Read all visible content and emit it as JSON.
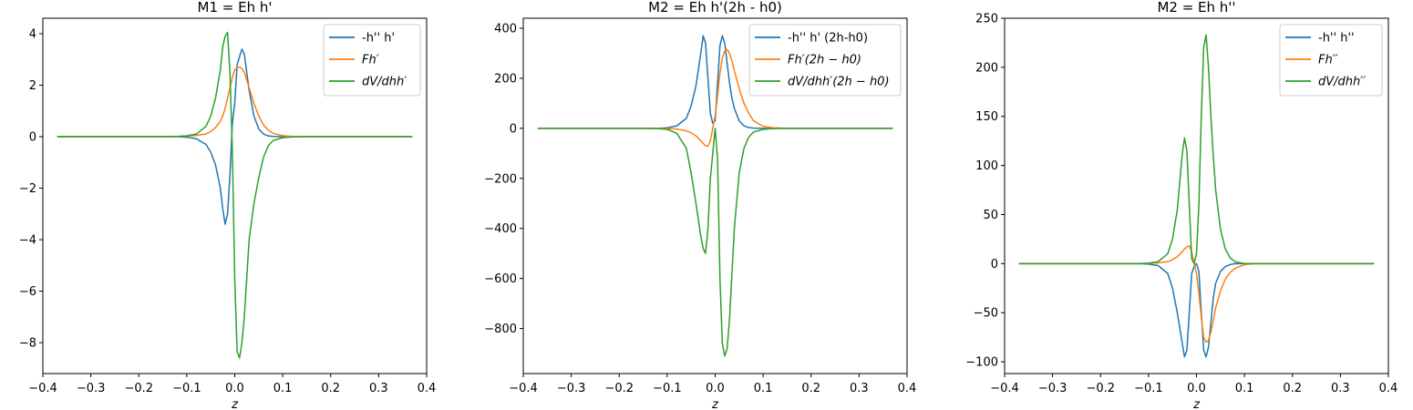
{
  "figure": {
    "background": "#ffffff",
    "colors": {
      "blue": "#1f77b4",
      "orange": "#ff7f0e",
      "green": "#2ca02c"
    }
  },
  "chart_data": [
    {
      "type": "line",
      "title": "M1 = Eh h'",
      "xlabel": "z",
      "ylabel": "",
      "xlim": [
        -0.4,
        0.4
      ],
      "ylim": [
        -9.2,
        4.6
      ],
      "xticks": [
        -0.4,
        -0.3,
        -0.2,
        -0.1,
        0.0,
        0.1,
        0.2,
        0.3,
        0.4
      ],
      "xtick_labels": [
        "−0.4",
        "−0.3",
        "−0.2",
        "−0.1",
        "0.0",
        "0.1",
        "0.2",
        "0.3",
        "0.4"
      ],
      "yticks": [
        -8,
        -6,
        -4,
        -2,
        0,
        2,
        4
      ],
      "ytick_labels": [
        "−8",
        "−6",
        "−4",
        "−2",
        "0",
        "2",
        "4"
      ],
      "legend_position": "top-right",
      "x": [
        -0.37,
        -0.2,
        -0.15,
        -0.12,
        -0.1,
        -0.08,
        -0.06,
        -0.05,
        -0.04,
        -0.03,
        -0.025,
        -0.02,
        -0.015,
        -0.01,
        -0.005,
        0.0,
        0.005,
        0.01,
        0.015,
        0.02,
        0.025,
        0.03,
        0.04,
        0.05,
        0.06,
        0.07,
        0.08,
        0.1,
        0.12,
        0.15,
        0.2,
        0.37
      ],
      "series": [
        {
          "name": "-h'' h'",
          "color": "#1f77b4",
          "values": [
            0,
            0,
            0,
            0,
            -0.02,
            -0.08,
            -0.3,
            -0.6,
            -1.1,
            -2.0,
            -2.8,
            -3.4,
            -3.0,
            -1.5,
            0.5,
            1.3,
            2.8,
            3.1,
            3.4,
            3.2,
            2.5,
            1.8,
            0.8,
            0.3,
            0.1,
            0.03,
            0.01,
            0,
            0,
            0,
            0,
            0
          ]
        },
        {
          "name": "Fh′",
          "color": "#ff7f0e",
          "values": [
            0,
            0,
            0,
            0.01,
            0.02,
            0.05,
            0.1,
            0.2,
            0.35,
            0.6,
            0.8,
            1.1,
            1.5,
            1.9,
            2.3,
            2.6,
            2.68,
            2.7,
            2.65,
            2.5,
            2.2,
            1.9,
            1.3,
            0.8,
            0.45,
            0.25,
            0.13,
            0.04,
            0.01,
            0,
            0,
            0
          ]
        },
        {
          "name": "dV/dhh′",
          "color": "#2ca02c",
          "values": [
            0,
            0,
            0,
            0.01,
            0.03,
            0.1,
            0.4,
            0.8,
            1.5,
            2.6,
            3.5,
            3.9,
            4.05,
            2.5,
            -0.5,
            -5.5,
            -8.35,
            -8.6,
            -8.0,
            -7.0,
            -5.5,
            -4.0,
            -2.6,
            -1.6,
            -0.8,
            -0.35,
            -0.15,
            -0.04,
            -0.01,
            0,
            0,
            0
          ]
        }
      ]
    },
    {
      "type": "line",
      "title": "M2 = Eh h'(2h - h0)",
      "xlabel": "z",
      "ylabel": "",
      "xlim": [
        -0.4,
        0.4
      ],
      "ylim": [
        -980,
        440
      ],
      "xticks": [
        -0.4,
        -0.3,
        -0.2,
        -0.1,
        0.0,
        0.1,
        0.2,
        0.3,
        0.4
      ],
      "xtick_labels": [
        "−0.4",
        "−0.3",
        "−0.2",
        "−0.1",
        "0.0",
        "0.1",
        "0.2",
        "0.3",
        "0.4"
      ],
      "yticks": [
        -800,
        -600,
        -400,
        -200,
        0,
        200,
        400
      ],
      "ytick_labels": [
        "−800",
        "−600",
        "−400",
        "−200",
        "0",
        "200",
        "400"
      ],
      "legend_position": "top-right",
      "x": [
        -0.37,
        -0.2,
        -0.15,
        -0.12,
        -0.1,
        -0.08,
        -0.06,
        -0.05,
        -0.04,
        -0.03,
        -0.025,
        -0.02,
        -0.015,
        -0.01,
        -0.005,
        0.0,
        0.005,
        0.01,
        0.015,
        0.02,
        0.025,
        0.03,
        0.035,
        0.04,
        0.05,
        0.06,
        0.07,
        0.08,
        0.1,
        0.12,
        0.15,
        0.2,
        0.37
      ],
      "series": [
        {
          "name": "-h'' h' (2h-h0)",
          "color": "#1f77b4",
          "values": [
            0,
            0,
            0,
            0,
            2,
            10,
            40,
            90,
            170,
            300,
            370,
            340,
            200,
            60,
            20,
            30,
            180,
            330,
            370,
            340,
            260,
            180,
            120,
            80,
            30,
            10,
            3,
            1,
            0,
            0,
            0,
            0,
            0
          ]
        },
        {
          "name": "Fh′(2h − h0)",
          "color": "#ff7f0e",
          "values": [
            0,
            0,
            0,
            0,
            -1,
            -3,
            -10,
            -18,
            -30,
            -50,
            -60,
            -70,
            -72,
            -50,
            0,
            50,
            130,
            220,
            280,
            310,
            315,
            300,
            270,
            230,
            160,
            100,
            60,
            30,
            8,
            2,
            0,
            0,
            0
          ]
        },
        {
          "name": "dV/dhh′(2h − h0)",
          "color": "#2ca02c",
          "values": [
            0,
            0,
            0,
            -1,
            -4,
            -20,
            -80,
            -180,
            -300,
            -430,
            -480,
            -500,
            -400,
            -200,
            -100,
            0,
            -120,
            -600,
            -860,
            -910,
            -880,
            -760,
            -580,
            -400,
            -180,
            -80,
            -35,
            -15,
            -4,
            -1,
            0,
            0,
            0
          ]
        }
      ]
    },
    {
      "type": "line",
      "title": "M2 = Eh h''",
      "xlabel": "z",
      "ylabel": "",
      "xlim": [
        -0.4,
        0.4
      ],
      "ylim": [
        -112,
        250
      ],
      "xticks": [
        -0.4,
        -0.3,
        -0.2,
        -0.1,
        0.0,
        0.1,
        0.2,
        0.3,
        0.4
      ],
      "xtick_labels": [
        "−0.4",
        "−0.3",
        "−0.2",
        "−0.1",
        "0.0",
        "0.1",
        "0.2",
        "0.3",
        "0.4"
      ],
      "yticks": [
        -100,
        -50,
        0,
        50,
        100,
        150,
        200,
        250
      ],
      "ytick_labels": [
        "−100",
        "−50",
        "0",
        "50",
        "100",
        "150",
        "200",
        "250"
      ],
      "legend_position": "top-right",
      "x": [
        -0.37,
        -0.2,
        -0.15,
        -0.12,
        -0.1,
        -0.08,
        -0.06,
        -0.05,
        -0.04,
        -0.03,
        -0.025,
        -0.02,
        -0.015,
        -0.01,
        -0.005,
        0.0,
        0.005,
        0.01,
        0.015,
        0.02,
        0.025,
        0.03,
        0.035,
        0.04,
        0.05,
        0.06,
        0.07,
        0.08,
        0.1,
        0.12,
        0.15,
        0.2,
        0.37
      ],
      "series": [
        {
          "name": "-h'' h''",
          "color": "#1f77b4",
          "values": [
            0,
            0,
            0,
            0,
            -0.5,
            -2,
            -10,
            -25,
            -50,
            -80,
            -95,
            -88,
            -50,
            -10,
            -3,
            0,
            -8,
            -50,
            -88,
            -95,
            -85,
            -60,
            -35,
            -20,
            -8,
            -3,
            -1,
            0,
            0,
            0,
            0,
            0,
            0
          ]
        },
        {
          "name": "Fh′′",
          "color": "#ff7f0e",
          "values": [
            0,
            0,
            0,
            0,
            0.2,
            0.8,
            2,
            4,
            7,
            12,
            15,
            17,
            18,
            12,
            0,
            -10,
            -30,
            -55,
            -75,
            -80,
            -78,
            -70,
            -58,
            -45,
            -28,
            -16,
            -9,
            -5,
            -1,
            0,
            0,
            0,
            0
          ]
        },
        {
          "name": "dV/dhh′′",
          "color": "#2ca02c",
          "values": [
            0,
            0,
            0,
            0,
            0.5,
            2,
            10,
            25,
            55,
            110,
            128,
            115,
            60,
            5,
            0,
            10,
            60,
            150,
            220,
            233,
            200,
            150,
            110,
            75,
            35,
            15,
            6,
            2,
            0,
            0,
            0,
            0,
            0
          ]
        }
      ]
    }
  ]
}
